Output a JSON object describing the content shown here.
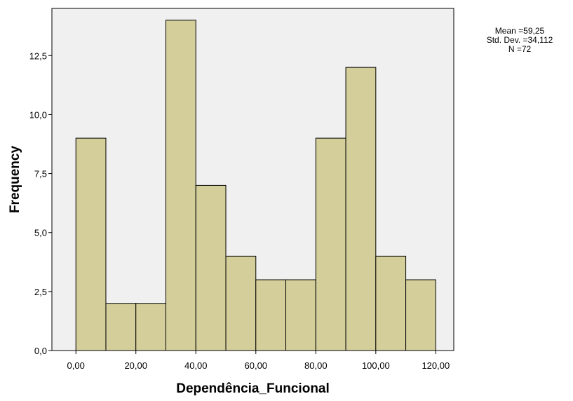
{
  "chart_data": {
    "type": "bar",
    "subtype": "histogram",
    "xlabel": "Dependência_Funcional",
    "ylabel": "Frequency",
    "bin_width": 10,
    "bins": [
      {
        "start": 0,
        "end": 10,
        "count": 9
      },
      {
        "start": 10,
        "end": 20,
        "count": 2
      },
      {
        "start": 20,
        "end": 30,
        "count": 2
      },
      {
        "start": 30,
        "end": 40,
        "count": 14
      },
      {
        "start": 40,
        "end": 50,
        "count": 7
      },
      {
        "start": 50,
        "end": 60,
        "count": 4
      },
      {
        "start": 60,
        "end": 70,
        "count": 3
      },
      {
        "start": 70,
        "end": 80,
        "count": 3
      },
      {
        "start": 80,
        "end": 90,
        "count": 9
      },
      {
        "start": 90,
        "end": 100,
        "count": 12
      },
      {
        "start": 100,
        "end": 110,
        "count": 4
      },
      {
        "start": 110,
        "end": 120,
        "count": 3
      }
    ],
    "xlim": [
      -8,
      126
    ],
    "ylim": [
      0,
      14.5
    ],
    "x_ticks": [
      0,
      20,
      40,
      60,
      80,
      100,
      120
    ],
    "x_tick_labels": [
      "0,00",
      "20,00",
      "40,00",
      "60,00",
      "80,00",
      "100,00",
      "120,00"
    ],
    "y_ticks": [
      0,
      2.5,
      5,
      7.5,
      10,
      12.5
    ],
    "y_tick_labels": [
      "0,0",
      "2,5",
      "5,0",
      "7,5",
      "10,0",
      "12,5"
    ],
    "grid": false,
    "colors": {
      "bar_fill": "#d3ce9a",
      "bar_stroke": "#000000",
      "plot_background": "#f0f0f0",
      "page_background": "#ffffff"
    },
    "stats": {
      "mean": "Mean =59,25",
      "std_dev": "Std. Dev. =34,112",
      "n": "N =72"
    }
  }
}
